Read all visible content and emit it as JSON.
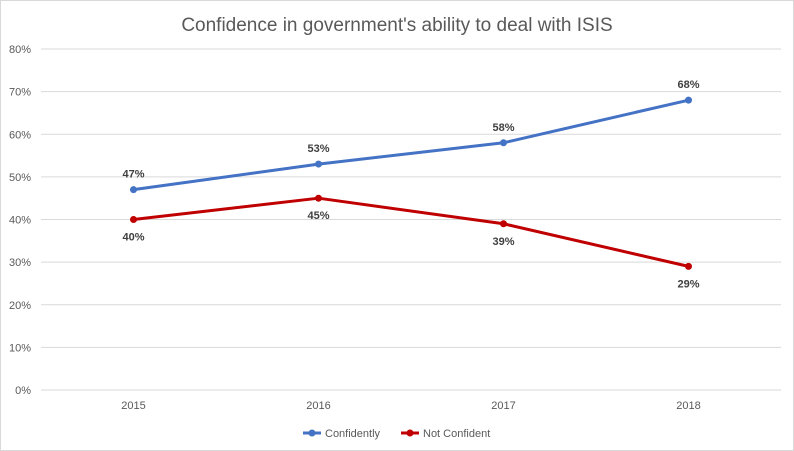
{
  "chart_data": {
    "type": "line",
    "title": "Confidence in government's ability to deal with ISIS",
    "xlabel": "",
    "ylabel": "",
    "categories": [
      "2015",
      "2016",
      "2017",
      "2018"
    ],
    "ylim": [
      0,
      80
    ],
    "yticks": [
      0,
      10,
      20,
      30,
      40,
      50,
      60,
      70,
      80
    ],
    "ytick_labels": [
      "0%",
      "10%",
      "20%",
      "30%",
      "40%",
      "50%",
      "60%",
      "70%",
      "80%"
    ],
    "grid": true,
    "legend_position": "bottom",
    "series": [
      {
        "name": "Confidently",
        "values": [
          47,
          53,
          58,
          68
        ],
        "labels": [
          "47%",
          "53%",
          "58%",
          "68%"
        ],
        "label_position": "above",
        "color": "#4472c4"
      },
      {
        "name": "Not Confident",
        "values": [
          40,
          45,
          39,
          29
        ],
        "labels": [
          "40%",
          "45%",
          "39%",
          "29%"
        ],
        "label_position": "below",
        "color": "#c00000"
      }
    ]
  }
}
